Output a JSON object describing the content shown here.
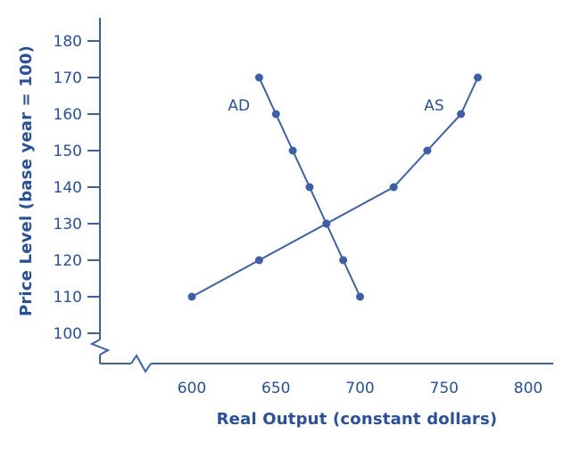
{
  "figure": {
    "background": "#ffffff"
  },
  "chart_data": {
    "type": "line",
    "title": "",
    "xlabel": "Real Output (constant dollars)",
    "ylabel": "Price Level (base year = 100)",
    "xlim": [
      600,
      800
    ],
    "ylim": [
      100,
      180
    ],
    "x_ticks": [
      600,
      650,
      700,
      750,
      800
    ],
    "y_ticks": [
      100,
      110,
      120,
      130,
      140,
      150,
      160,
      170,
      180
    ],
    "grid": false,
    "legend": "none",
    "axis_breaks": {
      "x_axis": true,
      "y_axis": true
    },
    "colors": {
      "accent": "#3b5fa8",
      "text": "#28509f",
      "background": "#ffffff"
    },
    "series": [
      {
        "name": "AD",
        "label_x": 628,
        "label_y": 161,
        "points": [
          [
            640,
            170
          ],
          [
            650,
            160
          ],
          [
            660,
            150
          ],
          [
            670,
            140
          ],
          [
            680,
            130
          ],
          [
            690,
            120
          ],
          [
            700,
            110
          ]
        ]
      },
      {
        "name": "AS",
        "label_x": 744,
        "label_y": 161,
        "points": [
          [
            600,
            110
          ],
          [
            640,
            120
          ],
          [
            680,
            130
          ],
          [
            720,
            140
          ],
          [
            740,
            150
          ],
          [
            760,
            160
          ],
          [
            770,
            170
          ]
        ]
      }
    ]
  }
}
